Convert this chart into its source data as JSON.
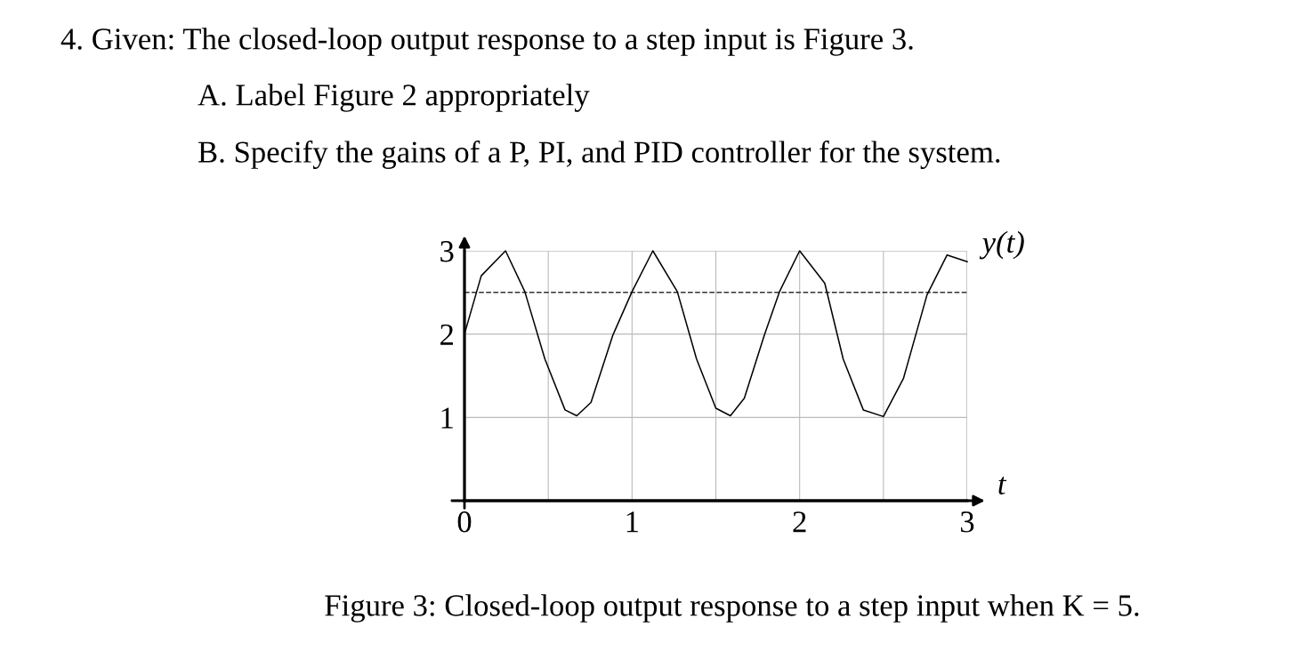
{
  "chart_data": {
    "type": "line",
    "title": "4. Given: The closed-loop output response to a step input is Figure 3.",
    "annotations": [
      "A. Label Figure 2 appropriately",
      "B. Specify the gains of a P, PI, and PID controller for the system.",
      "Figure 3: Closed-loop output response to a step input when K = 5."
    ],
    "xlabel": "t",
    "series": [
      {
        "name": "y(t)",
        "color": "#000000",
        "x": [
          0,
          0.1,
          0.245,
          0.36,
          0.48,
          0.6,
          0.67,
          0.755,
          0.886,
          1.0,
          1.124,
          1.27,
          1.385,
          1.5,
          1.587,
          1.67,
          1.79,
          1.88,
          2.0,
          2.15,
          2.26,
          2.38,
          2.5,
          2.62,
          2.76,
          2.88,
          3.0
        ],
        "values": [
          2.0,
          2.7,
          3.0,
          2.51,
          1.7,
          1.09,
          1.02,
          1.18,
          1.99,
          2.51,
          3.0,
          2.51,
          1.7,
          1.11,
          1.02,
          1.23,
          1.99,
          2.51,
          3.0,
          2.61,
          1.7,
          1.09,
          1.01,
          1.47,
          2.47,
          2.95,
          2.87
        ]
      }
    ],
    "xlim": [
      0,
      3
    ],
    "ylim": [
      0,
      3
    ],
    "xticks": [
      0,
      {
        "value": 0.5,
        "label": null
      },
      1,
      {
        "value": 1.5,
        "label": null
      },
      2,
      {
        "value": 2.5,
        "label": null
      },
      3
    ],
    "yticks": [
      1,
      2,
      3
    ],
    "ref_lines": [
      {
        "axis": "y",
        "value": 2.5,
        "label": null,
        "color": "#333333",
        "line_style": "dashed"
      }
    ],
    "grid": true,
    "legend": false,
    "marker": "none",
    "line_style": "solid"
  }
}
